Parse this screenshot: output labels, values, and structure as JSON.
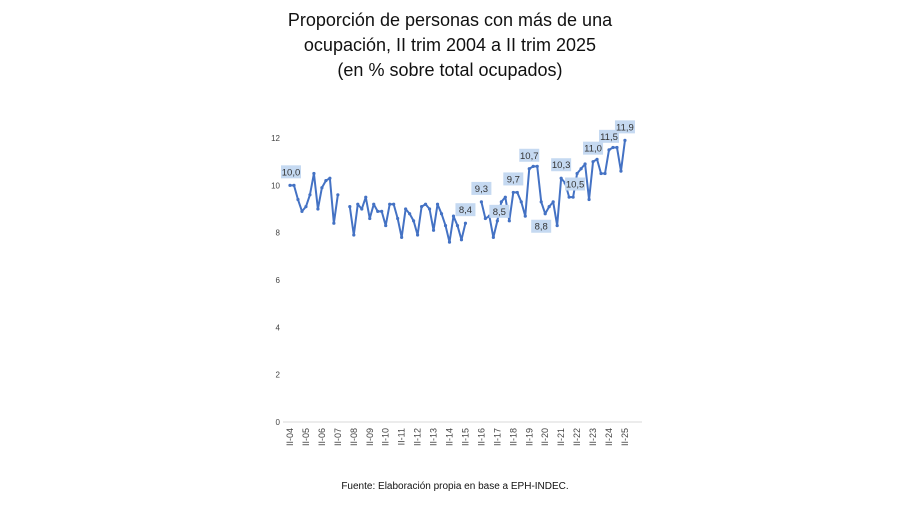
{
  "chart_data": {
    "type": "line",
    "title": [
      "Proporción de personas con más de una",
      "ocupación, II trim 2004 a II trim 2025",
      "(en % sobre total ocupados)"
    ],
    "source": "Fuente: Elaboración propia en base a EPH-INDEC.",
    "xlabel": "",
    "ylabel": "",
    "ylim": [
      0,
      12
    ],
    "yticks": [
      0,
      2,
      4,
      6,
      8,
      10,
      12
    ],
    "xtick_labels": [
      "II-04",
      "II-05",
      "II-06",
      "II-07",
      "II-08",
      "II-09",
      "II-10",
      "II-11",
      "II-12",
      "II-13",
      "II-14",
      "II-15",
      "II-16",
      "II-17",
      "II-18",
      "II-19",
      "II-20",
      "II-21",
      "II-22",
      "II-23",
      "II-24",
      "II-25"
    ],
    "grid": false,
    "color": "#4472C4",
    "x_start": "II-04",
    "frequency": "quarterly",
    "values": [
      10.0,
      10.0,
      9.4,
      8.9,
      9.1,
      9.6,
      10.5,
      9.0,
      9.9,
      10.2,
      10.3,
      8.4,
      9.6,
      null,
      null,
      9.1,
      7.9,
      9.2,
      9.0,
      9.5,
      8.6,
      9.2,
      8.9,
      8.9,
      8.3,
      9.2,
      9.2,
      8.6,
      7.8,
      9.0,
      8.8,
      8.5,
      7.9,
      9.1,
      9.2,
      9.0,
      8.1,
      9.2,
      8.8,
      8.3,
      7.6,
      8.7,
      8.3,
      7.7,
      8.4,
      null,
      null,
      null,
      9.3,
      8.6,
      8.7,
      7.8,
      8.5,
      9.3,
      9.5,
      8.5,
      9.7,
      9.7,
      9.3,
      8.7,
      10.7,
      10.8,
      10.8,
      9.3,
      8.8,
      9.1,
      9.3,
      8.3,
      10.3,
      10.1,
      9.5,
      9.5,
      10.5,
      10.7,
      10.9,
      9.4,
      11.0,
      11.1,
      10.5,
      10.5,
      11.5,
      11.6,
      11.6,
      10.6,
      11.9
    ],
    "data_labels": [
      {
        "x": "II-04",
        "value": "10,0"
      },
      {
        "x": "II-15",
        "value": "8,4"
      },
      {
        "x": "II-16",
        "value": "9,3"
      },
      {
        "x": "II-17",
        "value": "8,5"
      },
      {
        "x": "II-18",
        "value": "9,7"
      },
      {
        "x": "II-19",
        "value": "10,7"
      },
      {
        "x": "II-20",
        "value": "8,8"
      },
      {
        "x": "II-21",
        "value": "10,3"
      },
      {
        "x": "II-22",
        "value": "10,5"
      },
      {
        "x": "II-23",
        "value": "11,0"
      },
      {
        "x": "II-24",
        "value": "11,5"
      },
      {
        "x": "II-25",
        "value": "11,9"
      }
    ]
  }
}
